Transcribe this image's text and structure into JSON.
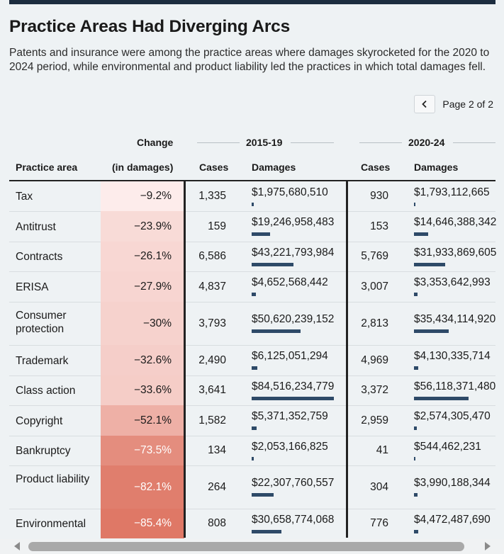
{
  "header": {
    "title": "Practice Areas Had Diverging Arcs",
    "subtitle": "Patents and insurance were among the practice areas where damages skyrocketed for the 2020 to 2024 period, while environmental and product liability led the practices in which total damages fell."
  },
  "pager": {
    "text": "Page 2 of 2",
    "prev_icon": "chevron-left-icon"
  },
  "groups": {
    "change": "Change",
    "period1": "2015-19",
    "period2": "2020-24"
  },
  "columns": {
    "practice_area": "Practice area",
    "change": "(in damages)",
    "cases1": "Cases",
    "damages1": "Damages",
    "cases2": "Cases",
    "damages2": "Damages"
  },
  "colors": {
    "bar": "#2e4a68",
    "heat_low": "#fdeceb",
    "heat_high": "#df7866",
    "rule": "#222222"
  },
  "chart_data": {
    "type": "table",
    "damages_scale_max": 84516234779,
    "rows": [
      {
        "area": "Tax",
        "change": "-9.2%",
        "change_value": -9.2,
        "cases1": "1,335",
        "damages1": "$1,975,680,510",
        "damages1_value": 1975680510,
        "cases2": "930",
        "damages2": "$1,793,112,665",
        "damages2_value": 1793112665
      },
      {
        "area": "Antitrust",
        "change": "-23.9%",
        "change_value": -23.9,
        "cases1": "159",
        "damages1": "$19,246,958,483",
        "damages1_value": 19246958483,
        "cases2": "153",
        "damages2": "$14,646,388,342",
        "damages2_value": 14646388342
      },
      {
        "area": "Contracts",
        "change": "-26.1%",
        "change_value": -26.1,
        "cases1": "6,586",
        "damages1": "$43,221,793,984",
        "damages1_value": 43221793984,
        "cases2": "5,769",
        "damages2": "$31,933,869,605",
        "damages2_value": 31933869605
      },
      {
        "area": "ERISA",
        "change": "-27.9%",
        "change_value": -27.9,
        "cases1": "4,837",
        "damages1": "$4,652,568,442",
        "damages1_value": 4652568442,
        "cases2": "3,007",
        "damages2": "$3,353,642,993",
        "damages2_value": 3353642993
      },
      {
        "area": "Consumer protection",
        "change": "-30%",
        "change_value": -30,
        "cases1": "3,793",
        "damages1": "$50,620,239,152",
        "damages1_value": 50620239152,
        "cases2": "2,813",
        "damages2": "$35,434,114,920",
        "damages2_value": 35434114920
      },
      {
        "area": "Trademark",
        "change": "-32.6%",
        "change_value": -32.6,
        "cases1": "2,490",
        "damages1": "$6,125,051,294",
        "damages1_value": 6125051294,
        "cases2": "4,969",
        "damages2": "$4,130,335,714",
        "damages2_value": 4130335714
      },
      {
        "area": "Class action",
        "change": "-33.6%",
        "change_value": -33.6,
        "cases1": "3,641",
        "damages1": "$84,516,234,779",
        "damages1_value": 84516234779,
        "cases2": "3,372",
        "damages2": "$56,118,371,480",
        "damages2_value": 56118371480
      },
      {
        "area": "Copyright",
        "change": "-52.1%",
        "change_value": -52.1,
        "cases1": "1,582",
        "damages1": "$5,371,352,759",
        "damages1_value": 5371352759,
        "cases2": "2,959",
        "damages2": "$2,574,305,470",
        "damages2_value": 2574305470
      },
      {
        "area": "Bankruptcy",
        "change": "-73.5%",
        "change_value": -73.5,
        "cases1": "134",
        "damages1": "$2,053,166,825",
        "damages1_value": 2053166825,
        "cases2": "41",
        "damages2": "$544,462,231",
        "damages2_value": 544462231
      },
      {
        "area": "Product liability",
        "change": "-82.1%",
        "change_value": -82.1,
        "cases1": "264",
        "damages1": "$22,307,760,557",
        "damages1_value": 22307760557,
        "cases2": "304",
        "damages2": "$3,990,188,344",
        "damages2_value": 3990188344
      },
      {
        "area": "Environmental",
        "change": "-85.4%",
        "change_value": -85.4,
        "cases1": "808",
        "damages1": "$30,658,774,068",
        "damages1_value": 30658774068,
        "cases2": "776",
        "damages2": "$4,472,487,690",
        "damages2_value": 4472487690
      }
    ]
  }
}
